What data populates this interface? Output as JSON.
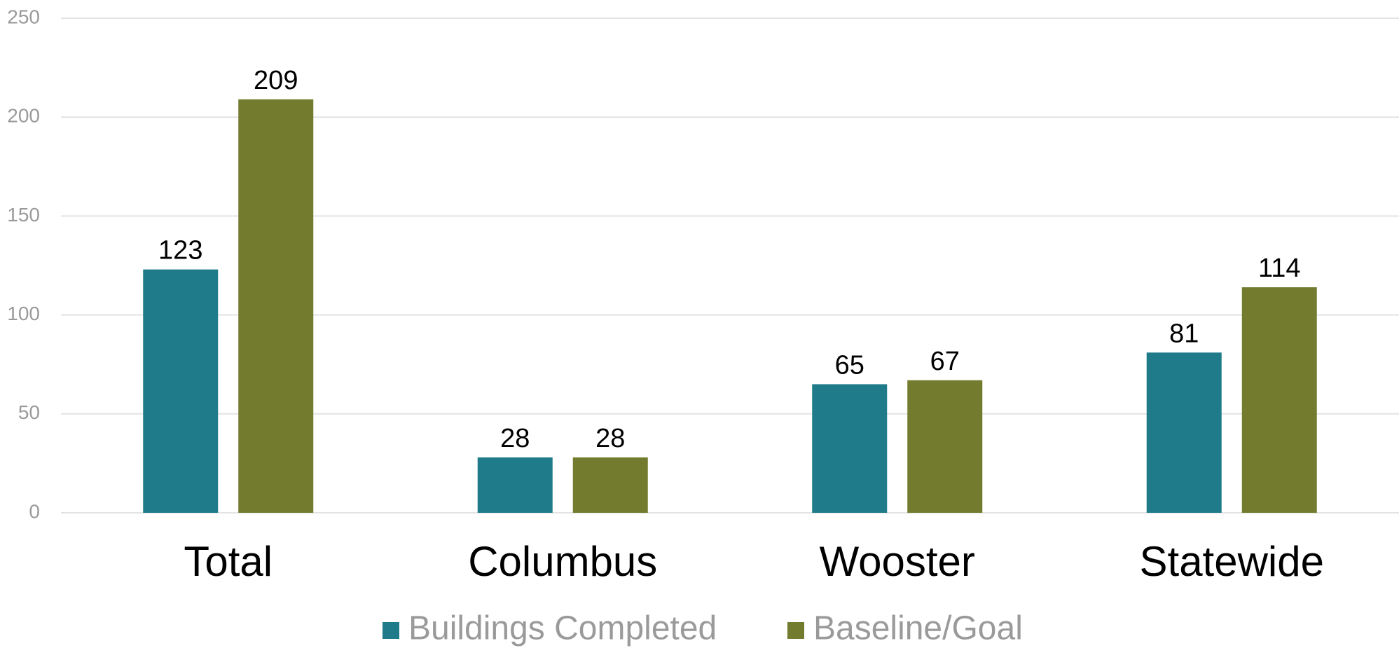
{
  "chart_data": {
    "type": "bar",
    "categories": [
      "Total",
      "Columbus",
      "Wooster",
      "Statewide"
    ],
    "series": [
      {
        "name": "Buildings Completed",
        "color": "#1f7b8a",
        "values": [
          123,
          28,
          65,
          81
        ]
      },
      {
        "name": "Baseline/Goal",
        "color": "#737b2e",
        "values": [
          209,
          28,
          67,
          114
        ]
      }
    ],
    "ylim": [
      0,
      250
    ],
    "yticks": [
      0,
      50,
      100,
      150,
      200,
      250
    ],
    "grid": true,
    "legend": "bottom"
  }
}
